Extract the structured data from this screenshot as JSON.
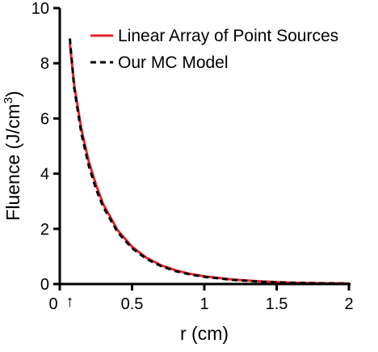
{
  "chart_data": {
    "type": "line",
    "xlabel": "r (cm)",
    "ylabel_main": "Fluence (J/cm",
    "ylabel_sup": "3",
    "ylabel_close": ")",
    "xlim": [
      0,
      2
    ],
    "ylim": [
      0,
      10
    ],
    "x_ticks": [
      0,
      0.5,
      1,
      1.5,
      2
    ],
    "y_ticks": [
      0,
      2,
      4,
      6,
      8,
      10
    ],
    "x_tick_labels": [
      "0",
      "0.5",
      "1",
      "1.5",
      "2"
    ],
    "y_tick_labels": [
      "0",
      "2",
      "4",
      "6",
      "8",
      "10"
    ],
    "grid": false,
    "legend_position": "top-right",
    "marker_annotation": {
      "x": 0.07,
      "glyph": "↑"
    },
    "series": [
      {
        "name": "Linear Array of Point Sources",
        "color": "#e8232a",
        "style": "solid",
        "x": [
          0.07,
          0.1,
          0.15,
          0.2,
          0.25,
          0.3,
          0.4,
          0.5,
          0.6,
          0.7,
          0.8,
          0.9,
          1.0,
          1.2,
          1.4,
          1.6,
          1.8,
          2.0
        ],
        "y": [
          8.7,
          7.2,
          5.6,
          4.45,
          3.6,
          2.9,
          1.95,
          1.35,
          0.95,
          0.68,
          0.5,
          0.37,
          0.28,
          0.16,
          0.09,
          0.05,
          0.03,
          0.02
        ]
      },
      {
        "name": "Our MC Model",
        "color": "#000000",
        "style": "dashed",
        "x": [
          0.07,
          0.1,
          0.15,
          0.2,
          0.25,
          0.3,
          0.4,
          0.5,
          0.6,
          0.7,
          0.8,
          0.9,
          1.0,
          1.2,
          1.4,
          1.6,
          1.8,
          2.0
        ],
        "y": [
          8.9,
          7.1,
          5.45,
          4.3,
          3.45,
          2.8,
          1.88,
          1.3,
          0.91,
          0.65,
          0.47,
          0.35,
          0.26,
          0.15,
          0.08,
          0.045,
          0.025,
          0.015
        ]
      }
    ]
  }
}
